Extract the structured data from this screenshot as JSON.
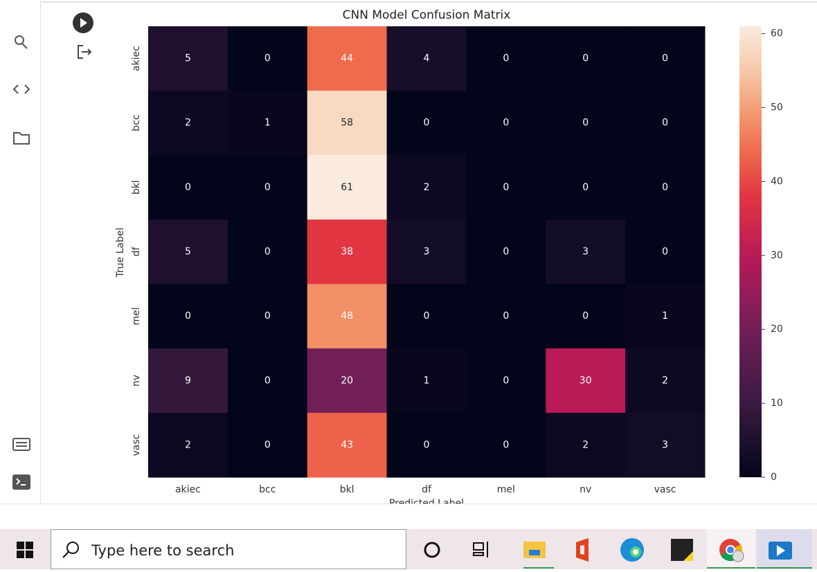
{
  "chart_data": {
    "type": "heatmap",
    "title": "CNN Model Confusion Matrix",
    "x_label": "Predicted Label",
    "y_label": "True Label",
    "x_categories": [
      "akiec",
      "bcc",
      "bkl",
      "df",
      "mel",
      "nv",
      "vasc"
    ],
    "y_categories": [
      "akiec",
      "bcc",
      "bkl",
      "df",
      "mel",
      "nv",
      "vasc"
    ],
    "values": [
      [
        5,
        0,
        44,
        4,
        0,
        0,
        0
      ],
      [
        2,
        1,
        58,
        0,
        0,
        0,
        0
      ],
      [
        0,
        0,
        61,
        2,
        0,
        0,
        0
      ],
      [
        5,
        0,
        38,
        3,
        0,
        3,
        0
      ],
      [
        0,
        0,
        48,
        0,
        0,
        0,
        1
      ],
      [
        9,
        0,
        20,
        1,
        0,
        30,
        2
      ],
      [
        2,
        0,
        43,
        0,
        0,
        2,
        3
      ]
    ],
    "colormap": "rocket",
    "zlim": [
      0,
      61
    ],
    "zticks": [
      0,
      10,
      20,
      30,
      40,
      50,
      60
    ]
  },
  "taskbar": {
    "search_placeholder": "Type here to search"
  }
}
